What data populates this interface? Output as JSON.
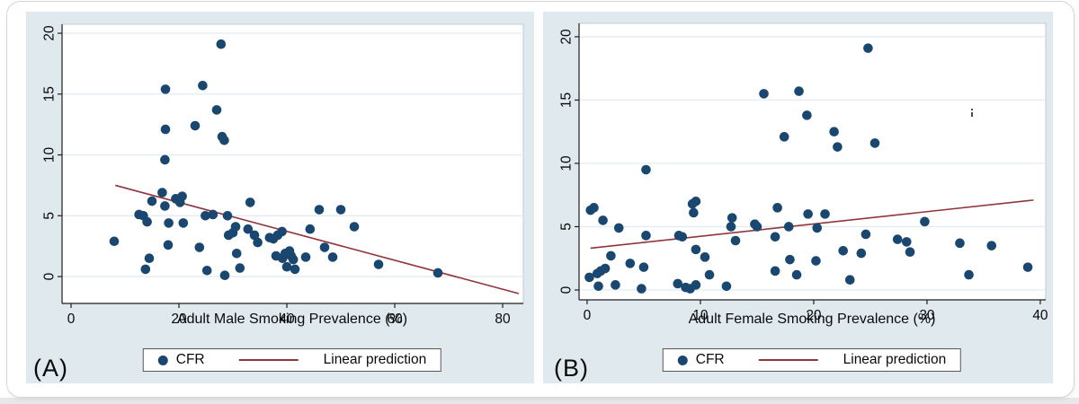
{
  "colors": {
    "marker": "#1a476f",
    "fit_line": "#90353b",
    "panel_background": "#dfe9ee",
    "plot_background": "#ffffff",
    "plot_border": "#bfcbd4",
    "gridline": "#e3ecf2",
    "axis": "#1f1f1f",
    "page_strip": "#e8e8e8"
  },
  "chart_data": [
    {
      "type": "scatter",
      "panel_tag": "(A)",
      "xlabel": "Adult Male Smoking Prevalence (%)",
      "ylabel": "",
      "x_ticks": [
        0,
        20,
        40,
        60,
        80
      ],
      "y_ticks": [
        0,
        5,
        10,
        15,
        20
      ],
      "xlim": [
        -1.67,
        83.83
      ],
      "ylim": [
        -2.21,
        20.74
      ],
      "grid": "horizontal",
      "legend_position": "bottom-center",
      "legend": [
        "CFR",
        "Linear prediction"
      ],
      "series": [
        {
          "name": "CFR",
          "type": "scatter",
          "points": [
            [
              8.0,
              2.9
            ],
            [
              12.6,
              5.1
            ],
            [
              13.4,
              5.0
            ],
            [
              14.1,
              4.5
            ],
            [
              15.0,
              6.2
            ],
            [
              13.8,
              0.6
            ],
            [
              14.5,
              1.5
            ],
            [
              16.9,
              6.9
            ],
            [
              17.4,
              5.8
            ],
            [
              17.5,
              15.4
            ],
            [
              17.5,
              12.1
            ],
            [
              17.4,
              9.6
            ],
            [
              18.1,
              4.4
            ],
            [
              18.0,
              2.6
            ],
            [
              19.4,
              6.4
            ],
            [
              20.2,
              6.1
            ],
            [
              20.6,
              6.6
            ],
            [
              20.8,
              4.4
            ],
            [
              23.0,
              12.4
            ],
            [
              23.8,
              2.4
            ],
            [
              24.4,
              15.7
            ],
            [
              24.9,
              5.0
            ],
            [
              26.3,
              5.1
            ],
            [
              25.2,
              0.5
            ],
            [
              27.0,
              13.7
            ],
            [
              27.8,
              19.1
            ],
            [
              28.0,
              11.5
            ],
            [
              28.4,
              11.2
            ],
            [
              28.5,
              0.1
            ],
            [
              29.0,
              5.0
            ],
            [
              29.2,
              3.4
            ],
            [
              30.0,
              3.6
            ],
            [
              30.5,
              4.1
            ],
            [
              30.7,
              1.9
            ],
            [
              31.3,
              0.7
            ],
            [
              33.2,
              6.1
            ],
            [
              32.8,
              3.9
            ],
            [
              34.0,
              3.4
            ],
            [
              34.6,
              2.8
            ],
            [
              36.8,
              3.2
            ],
            [
              37.5,
              3.1
            ],
            [
              38.3,
              3.4
            ],
            [
              39.1,
              3.7
            ],
            [
              38.0,
              1.7
            ],
            [
              39.2,
              1.5
            ],
            [
              39.7,
              1.9
            ],
            [
              40.5,
              2.1
            ],
            [
              40.8,
              1.7
            ],
            [
              41.2,
              1.4
            ],
            [
              40.0,
              0.8
            ],
            [
              41.5,
              0.6
            ],
            [
              43.5,
              1.6
            ],
            [
              44.3,
              3.9
            ],
            [
              46.0,
              5.5
            ],
            [
              47.0,
              2.4
            ],
            [
              48.5,
              1.6
            ],
            [
              50.0,
              5.5
            ],
            [
              52.5,
              4.1
            ],
            [
              57.0,
              1.0
            ],
            [
              68.0,
              0.3
            ]
          ]
        },
        {
          "name": "Linear prediction",
          "type": "line",
          "endpoints": [
            [
              8.2,
              7.5
            ],
            [
              83.0,
              -1.4
            ]
          ]
        }
      ]
    },
    {
      "type": "scatter",
      "panel_tag": "(B)",
      "xlabel": "Adult Female Smoking Prevalence (%)",
      "ylabel": "",
      "x_ticks": [
        0,
        10,
        20,
        30,
        40
      ],
      "y_ticks": [
        0,
        5,
        10,
        15,
        20
      ],
      "xlim": [
        -0.71,
        40.48
      ],
      "ylim": [
        -0.78,
        21.06
      ],
      "grid": "horizontal",
      "legend_position": "bottom-center",
      "legend": [
        "CFR",
        "Linear prediction"
      ],
      "series": [
        {
          "name": "CFR",
          "type": "scatter",
          "points": [
            [
              0.3,
              6.3
            ],
            [
              0.6,
              6.5
            ],
            [
              1.4,
              5.5
            ],
            [
              2.8,
              4.9
            ],
            [
              5.2,
              4.3
            ],
            [
              8.1,
              4.3
            ],
            [
              8.4,
              4.2
            ],
            [
              2.1,
              2.7
            ],
            [
              3.8,
              2.1
            ],
            [
              0.2,
              1.0
            ],
            [
              0.9,
              1.3
            ],
            [
              1.2,
              1.5
            ],
            [
              1.6,
              1.7
            ],
            [
              1.0,
              0.3
            ],
            [
              2.5,
              0.4
            ],
            [
              4.8,
              0.1
            ],
            [
              5.0,
              1.8
            ],
            [
              8.0,
              0.5
            ],
            [
              8.7,
              0.2
            ],
            [
              9.1,
              0.1
            ],
            [
              9.6,
              0.4
            ],
            [
              9.6,
              3.2
            ],
            [
              10.4,
              2.6
            ],
            [
              10.8,
              1.2
            ],
            [
              12.3,
              0.3
            ],
            [
              12.7,
              5.0
            ],
            [
              12.8,
              5.7
            ],
            [
              13.1,
              3.9
            ],
            [
              14.8,
              5.2
            ],
            [
              15.0,
              5.0
            ],
            [
              9.3,
              6.8
            ],
            [
              9.6,
              7.0
            ],
            [
              9.4,
              6.1
            ],
            [
              5.2,
              9.5
            ],
            [
              15.6,
              15.5
            ],
            [
              18.7,
              15.7
            ],
            [
              19.4,
              13.8
            ],
            [
              17.4,
              12.1
            ],
            [
              21.8,
              12.5
            ],
            [
              22.1,
              11.3
            ],
            [
              25.4,
              11.6
            ],
            [
              24.8,
              19.1
            ],
            [
              16.8,
              6.5
            ],
            [
              19.5,
              6.0
            ],
            [
              21.0,
              6.0
            ],
            [
              20.3,
              4.9
            ],
            [
              17.8,
              5.0
            ],
            [
              16.6,
              4.2
            ],
            [
              16.6,
              1.5
            ],
            [
              18.5,
              1.2
            ],
            [
              17.9,
              2.4
            ],
            [
              20.2,
              2.3
            ],
            [
              22.6,
              3.1
            ],
            [
              24.2,
              2.9
            ],
            [
              23.2,
              0.8
            ],
            [
              24.6,
              4.4
            ],
            [
              27.4,
              4.0
            ],
            [
              28.2,
              3.8
            ],
            [
              28.5,
              3.0
            ],
            [
              29.8,
              5.4
            ],
            [
              32.9,
              3.7
            ],
            [
              33.7,
              1.2
            ],
            [
              35.7,
              3.5
            ],
            [
              38.9,
              1.8
            ]
          ]
        },
        {
          "name": "Linear prediction",
          "type": "line",
          "endpoints": [
            [
              0.3,
              3.3
            ],
            [
              39.4,
              7.1
            ]
          ]
        }
      ]
    }
  ]
}
